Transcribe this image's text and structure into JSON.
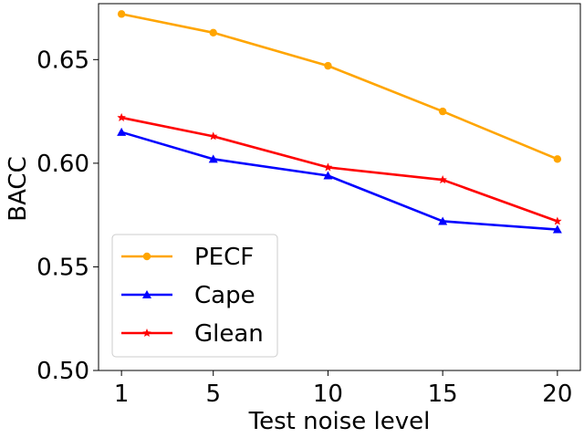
{
  "chart_data": {
    "type": "line",
    "xlabel": "Test noise level",
    "ylabel": "BACC",
    "x": [
      1,
      5,
      10,
      15,
      20
    ],
    "xticks": [
      "1",
      "5",
      "10",
      "15",
      "20"
    ],
    "xlim": [
      0.0,
      21.0
    ],
    "ylim": [
      0.5,
      0.677
    ],
    "yticks": [
      "0.50",
      "0.55",
      "0.60",
      "0.65"
    ],
    "grid": false,
    "legend": "lower-left",
    "series": [
      {
        "name": "PECF",
        "color": "#ffa500",
        "marker": "circle",
        "values": [
          0.672,
          0.663,
          0.647,
          0.625,
          0.602
        ]
      },
      {
        "name": "Cape",
        "color": "#0000ff",
        "marker": "triangle",
        "values": [
          0.615,
          0.602,
          0.594,
          0.572,
          0.568
        ]
      },
      {
        "name": "Glean",
        "color": "#ff0000",
        "marker": "star",
        "values": [
          0.622,
          0.613,
          0.598,
          0.592,
          0.572
        ]
      }
    ]
  }
}
